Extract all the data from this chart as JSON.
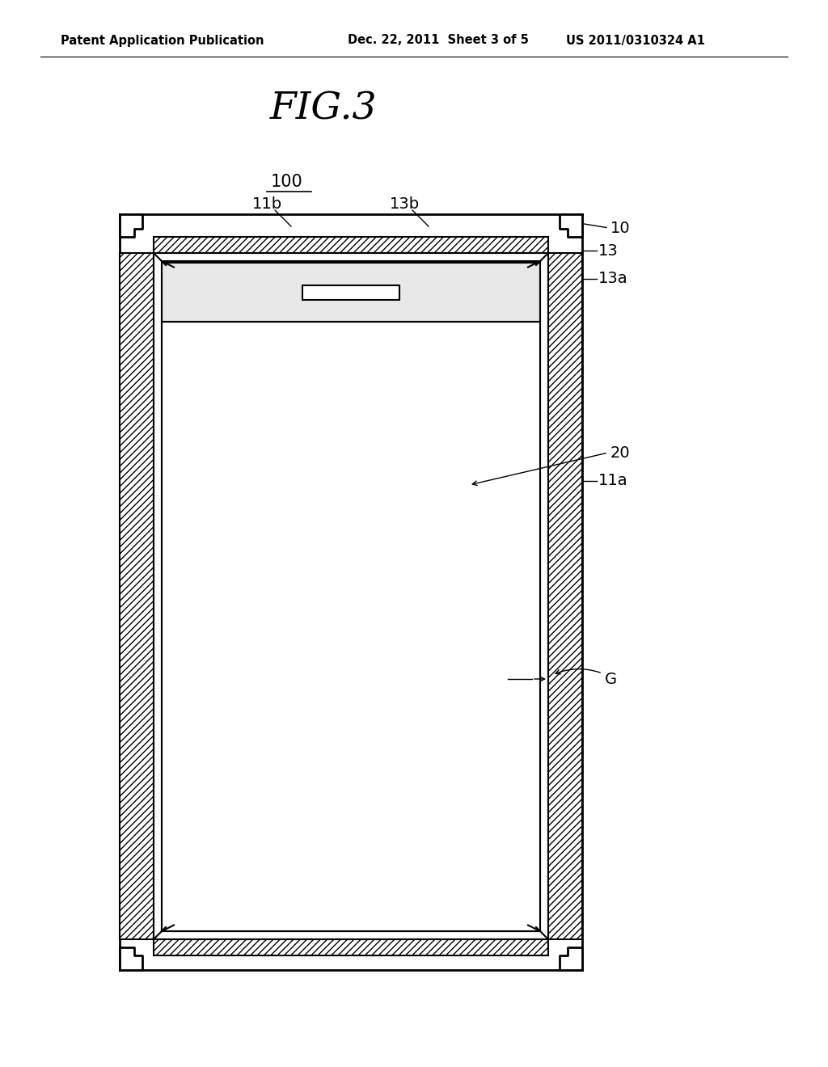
{
  "bg_color": "#ffffff",
  "line_color": "#000000",
  "title_text": "FIG.3",
  "header_left": "Patent Application Publication",
  "header_mid": "Dec. 22, 2011  Sheet 3 of 5",
  "header_right": "US 2011/0310324 A1",
  "label_100": "100",
  "label_10": "10",
  "label_11a": "11a",
  "label_11b": "11b",
  "label_13": "13",
  "label_13a": "13a",
  "label_13b": "13b",
  "label_20": "20",
  "label_G": "G"
}
